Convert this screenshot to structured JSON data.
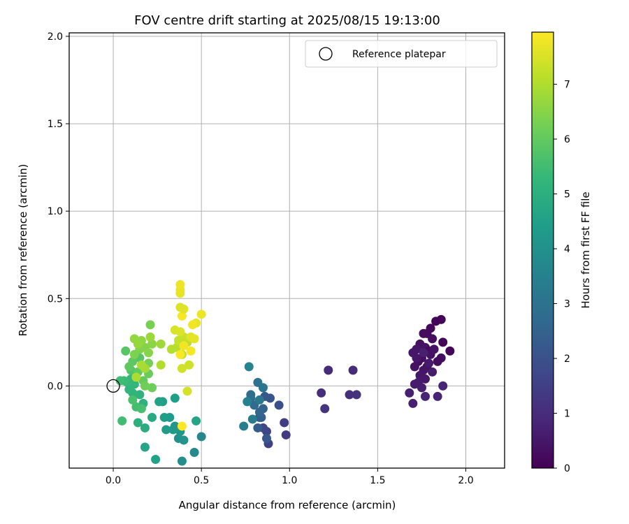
{
  "chart_data": {
    "type": "scatter",
    "title": "FOV centre drift starting at 2025/08/15 19:13:00",
    "xlabel": "Angular distance from reference (arcmin)",
    "ylabel": "Rotation from reference (arcmin)",
    "xlim": [
      -0.25,
      2.22
    ],
    "ylim": [
      -0.47,
      2.02
    ],
    "xticks": [
      0.0,
      0.5,
      1.0,
      1.5,
      2.0
    ],
    "xtick_labels": [
      "0.0",
      "0.5",
      "1.0",
      "1.5",
      "2.0"
    ],
    "yticks": [
      0.0,
      0.5,
      1.0,
      1.5,
      2.0
    ],
    "ytick_labels": [
      "0.0",
      "0.5",
      "1.0",
      "1.5",
      "2.0"
    ],
    "grid": true,
    "legend": {
      "position": "upper right",
      "entries": [
        "Reference platepar"
      ]
    },
    "reference_point": {
      "x": 0.0,
      "y": 0.0
    },
    "colorbar": {
      "label": "Hours from first FF file",
      "colormap": "viridis",
      "range": [
        0,
        7.95
      ],
      "ticks": [
        0,
        1,
        2,
        3,
        4,
        5,
        6,
        7
      ],
      "tick_labels": [
        "0",
        "1",
        "2",
        "3",
        "4",
        "5",
        "6",
        "7"
      ]
    },
    "points": [
      [
        1.86,
        0.38,
        0.05
      ],
      [
        1.83,
        0.37,
        0.1
      ],
      [
        1.8,
        0.33,
        0.15
      ],
      [
        1.78,
        0.3,
        0.2
      ],
      [
        1.76,
        0.3,
        0.25
      ],
      [
        1.81,
        0.27,
        0.3
      ],
      [
        1.74,
        0.24,
        0.35
      ],
      [
        1.77,
        0.22,
        0.4
      ],
      [
        1.72,
        0.21,
        0.45
      ],
      [
        1.7,
        0.19,
        0.5
      ],
      [
        1.79,
        0.2,
        0.18
      ],
      [
        1.75,
        0.16,
        0.22
      ],
      [
        1.73,
        0.14,
        0.28
      ],
      [
        1.78,
        0.11,
        0.32
      ],
      [
        1.71,
        0.11,
        0.38
      ],
      [
        1.76,
        0.09,
        0.42
      ],
      [
        1.74,
        0.06,
        0.48
      ],
      [
        1.77,
        0.04,
        0.52
      ],
      [
        1.73,
        0.02,
        0.56
      ],
      [
        1.71,
        0.01,
        0.6
      ],
      [
        1.75,
        -0.01,
        0.64
      ],
      [
        1.68,
        -0.04,
        0.68
      ],
      [
        1.7,
        -0.1,
        0.72
      ],
      [
        1.77,
        -0.06,
        0.76
      ],
      [
        1.84,
        -0.06,
        0.8
      ],
      [
        1.87,
        0.0,
        0.84
      ],
      [
        1.86,
        0.16,
        0.3
      ],
      [
        1.84,
        0.14,
        0.24
      ],
      [
        1.91,
        0.2,
        0.12
      ],
      [
        1.87,
        0.25,
        0.08
      ],
      [
        1.8,
        0.18,
        0.36
      ],
      [
        1.82,
        0.21,
        0.4
      ],
      [
        1.72,
        0.16,
        0.5
      ],
      [
        1.79,
        0.13,
        0.55
      ],
      [
        1.81,
        0.08,
        0.62
      ],
      [
        1.76,
        0.19,
        0.7
      ],
      [
        1.22,
        0.09,
        0.95
      ],
      [
        1.36,
        0.09,
        1.0
      ],
      [
        1.18,
        -0.04,
        1.05
      ],
      [
        1.34,
        -0.05,
        1.1
      ],
      [
        1.38,
        -0.05,
        1.15
      ],
      [
        1.2,
        -0.13,
        1.2
      ],
      [
        0.98,
        -0.28,
        1.35
      ],
      [
        0.97,
        -0.21,
        1.45
      ],
      [
        0.88,
        -0.33,
        1.55
      ],
      [
        0.87,
        -0.26,
        1.65
      ],
      [
        0.85,
        -0.24,
        1.75
      ],
      [
        0.83,
        -0.18,
        1.85
      ],
      [
        0.94,
        -0.11,
        1.95
      ],
      [
        0.89,
        -0.07,
        2.05
      ],
      [
        0.86,
        -0.06,
        2.15
      ],
      [
        0.87,
        -0.3,
        2.2
      ],
      [
        0.82,
        -0.24,
        2.3
      ],
      [
        0.84,
        -0.18,
        2.4
      ],
      [
        0.85,
        -0.13,
        2.5
      ],
      [
        0.83,
        -0.15,
        2.6
      ],
      [
        0.8,
        -0.11,
        2.7
      ],
      [
        0.78,
        -0.07,
        2.8
      ],
      [
        0.78,
        -0.05,
        2.9
      ],
      [
        0.82,
        0.02,
        3.0
      ],
      [
        0.85,
        -0.01,
        3.1
      ],
      [
        0.83,
        -0.08,
        3.2
      ],
      [
        0.79,
        -0.19,
        3.3
      ],
      [
        0.74,
        -0.23,
        3.4
      ],
      [
        0.76,
        -0.09,
        3.5
      ],
      [
        0.77,
        0.11,
        3.6
      ],
      [
        0.5,
        -0.29,
        3.7
      ],
      [
        0.46,
        -0.38,
        3.8
      ],
      [
        0.39,
        -0.43,
        3.9
      ],
      [
        0.37,
        -0.3,
        4.0
      ],
      [
        0.4,
        -0.31,
        4.1
      ],
      [
        0.38,
        -0.26,
        4.15
      ],
      [
        0.35,
        -0.23,
        4.2
      ],
      [
        0.34,
        -0.25,
        4.25
      ],
      [
        0.32,
        -0.18,
        4.3
      ],
      [
        0.3,
        -0.25,
        4.35
      ],
      [
        0.29,
        -0.18,
        4.4
      ],
      [
        0.35,
        -0.07,
        4.45
      ],
      [
        0.28,
        -0.09,
        4.5
      ],
      [
        0.26,
        -0.09,
        4.55
      ],
      [
        0.24,
        -0.42,
        4.6
      ],
      [
        0.47,
        -0.2,
        4.65
      ],
      [
        0.18,
        -0.35,
        4.7
      ],
      [
        0.22,
        -0.18,
        4.8
      ],
      [
        0.18,
        -0.24,
        4.9
      ],
      [
        0.14,
        -0.21,
        5.0
      ],
      [
        0.17,
        -0.1,
        5.05
      ],
      [
        0.15,
        -0.05,
        5.1
      ],
      [
        0.11,
        -0.04,
        5.15
      ],
      [
        0.09,
        -0.02,
        5.2
      ],
      [
        0.12,
        0.01,
        5.25
      ],
      [
        0.1,
        0.04,
        5.3
      ],
      [
        0.08,
        0.02,
        5.35
      ],
      [
        0.06,
        0.03,
        5.4
      ],
      [
        0.04,
        0.03,
        5.45
      ],
      [
        0.05,
        -0.2,
        5.5
      ],
      [
        0.13,
        -0.12,
        5.55
      ],
      [
        0.16,
        -0.13,
        5.6
      ],
      [
        0.11,
        -0.08,
        5.65
      ],
      [
        0.13,
        0.05,
        5.7
      ],
      [
        0.1,
        0.09,
        5.75
      ],
      [
        0.15,
        0.16,
        5.8
      ],
      [
        0.07,
        0.2,
        5.85
      ],
      [
        0.11,
        0.14,
        5.9
      ],
      [
        0.09,
        0.11,
        5.95
      ],
      [
        0.14,
        0.08,
        6.0
      ],
      [
        0.17,
        0.03,
        6.05
      ],
      [
        0.2,
        0.07,
        6.1
      ],
      [
        0.22,
        -0.01,
        6.15
      ],
      [
        0.18,
        0.0,
        6.2
      ],
      [
        0.2,
        0.13,
        6.25
      ],
      [
        0.21,
        0.35,
        6.3
      ],
      [
        0.12,
        0.18,
        6.35
      ],
      [
        0.15,
        0.21,
        6.4
      ],
      [
        0.18,
        0.22,
        6.45
      ],
      [
        0.2,
        0.19,
        6.5
      ],
      [
        0.22,
        0.24,
        6.55
      ],
      [
        0.16,
        0.26,
        6.6
      ],
      [
        0.12,
        0.27,
        6.65
      ],
      [
        0.14,
        0.24,
        6.7
      ],
      [
        0.21,
        0.28,
        6.75
      ],
      [
        0.27,
        0.24,
        6.8
      ],
      [
        0.18,
        0.1,
        6.85
      ],
      [
        0.16,
        0.12,
        6.9
      ],
      [
        0.13,
        0.05,
        6.95
      ],
      [
        0.27,
        0.12,
        7.0
      ],
      [
        0.33,
        0.21,
        7.05
      ],
      [
        0.36,
        0.22,
        7.1
      ],
      [
        0.39,
        0.18,
        7.15
      ],
      [
        0.42,
        0.25,
        7.2
      ],
      [
        0.37,
        0.26,
        7.25
      ],
      [
        0.4,
        0.28,
        7.3
      ],
      [
        0.43,
        0.12,
        7.35
      ],
      [
        0.39,
        0.1,
        7.4
      ],
      [
        0.42,
        -0.03,
        7.45
      ],
      [
        0.35,
        0.32,
        7.5
      ],
      [
        0.38,
        0.31,
        7.55
      ],
      [
        0.44,
        0.28,
        7.6
      ],
      [
        0.46,
        0.27,
        7.65
      ],
      [
        0.47,
        0.36,
        7.7
      ],
      [
        0.5,
        0.41,
        7.75
      ],
      [
        0.45,
        0.35,
        7.8
      ],
      [
        0.39,
        0.4,
        7.85
      ],
      [
        0.4,
        0.44,
        7.6
      ],
      [
        0.38,
        0.45,
        7.55
      ],
      [
        0.38,
        0.53,
        7.65
      ],
      [
        0.38,
        0.55,
        7.7
      ],
      [
        0.38,
        0.58,
        7.75
      ],
      [
        0.4,
        0.23,
        7.8
      ],
      [
        0.44,
        0.2,
        7.85
      ],
      [
        0.38,
        0.18,
        7.9
      ],
      [
        0.39,
        -0.23,
        7.95
      ]
    ]
  }
}
